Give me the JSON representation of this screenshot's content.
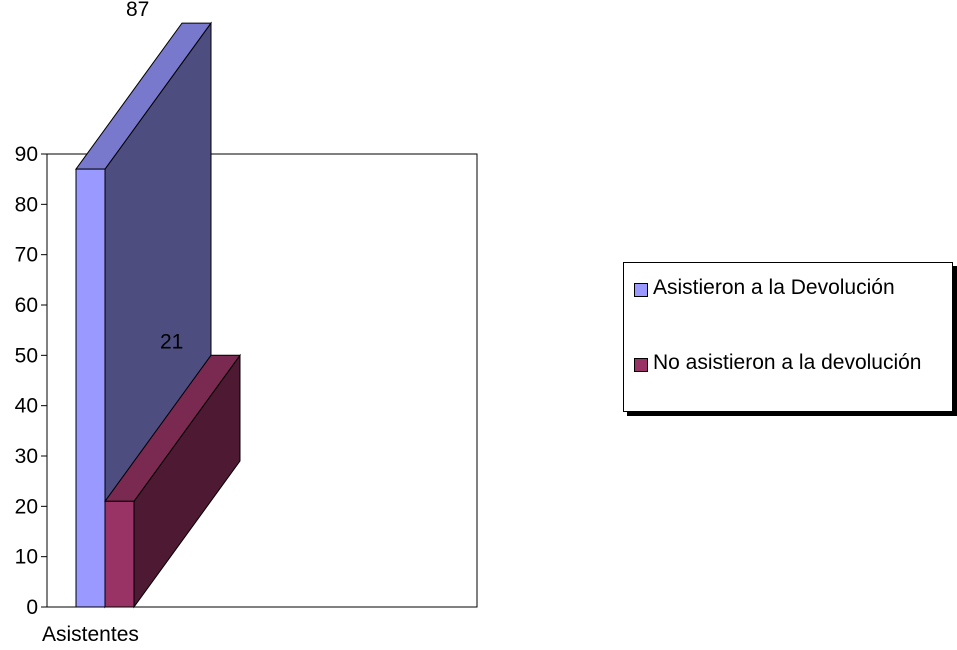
{
  "chart_data": {
    "type": "bar",
    "title": "",
    "categories": [
      "Asistentes"
    ],
    "series": [
      {
        "name": "Asistieron a la Devolución",
        "values": [
          87
        ],
        "color": "#9999ff",
        "data_label": "87"
      },
      {
        "name": "No asistieron a la devolución",
        "values": [
          21
        ],
        "color": "#993366",
        "data_label": "21"
      }
    ],
    "ylim": [
      0,
      90
    ],
    "yticks": [
      "0",
      "10",
      "20",
      "30",
      "40",
      "50",
      "60",
      "70",
      "80",
      "90"
    ],
    "xlabel": "",
    "ylabel": "",
    "grid": false,
    "style": "3d",
    "legend_position": "right"
  },
  "colors": {
    "series1_front": "#9999ff",
    "series1_top": "#7878cc",
    "series1_side": "#4d4d80",
    "series2_front": "#993366",
    "series2_top": "#7a2951",
    "series2_side": "#4d1933"
  }
}
